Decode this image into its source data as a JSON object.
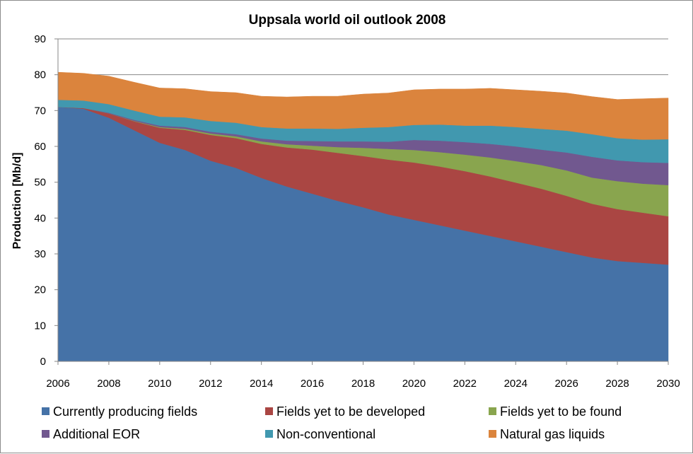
{
  "chart_data": {
    "type": "area",
    "stacked": true,
    "title": "Uppsala world oil outlook 2008",
    "xlabel": "",
    "ylabel": "Production [Mb/d]",
    "xlim": [
      2006,
      2030
    ],
    "ylim": [
      0,
      90
    ],
    "xticks": [
      2006,
      2008,
      2010,
      2012,
      2014,
      2016,
      2018,
      2020,
      2022,
      2024,
      2026,
      2028,
      2030
    ],
    "yticks": [
      0,
      10,
      20,
      30,
      40,
      50,
      60,
      70,
      80,
      90
    ],
    "grid": "horizontal",
    "legend_position": "bottom",
    "x": [
      2006,
      2007,
      2008,
      2009,
      2010,
      2011,
      2012,
      2013,
      2014,
      2015,
      2016,
      2017,
      2018,
      2019,
      2020,
      2021,
      2022,
      2023,
      2024,
      2025,
      2026,
      2027,
      2028,
      2029,
      2030
    ],
    "series": [
      {
        "name": "Currently producing fields",
        "color": "#4572a7",
        "values": [
          71.0,
          70.5,
          68.0,
          64.5,
          61.0,
          59.0,
          56.0,
          54.0,
          51.2,
          48.8,
          46.8,
          44.8,
          43.0,
          41.0,
          39.5,
          38.0,
          36.5,
          35.0,
          33.5,
          32.0,
          30.5,
          29.0,
          28.0,
          27.5,
          27.0
        ]
      },
      {
        "name": "Fields yet to be developed",
        "color": "#aa4643",
        "values": [
          0.0,
          0.2,
          1.2,
          2.5,
          4.2,
          5.6,
          7.2,
          8.3,
          9.5,
          10.9,
          12.3,
          13.4,
          14.3,
          15.3,
          16.0,
          16.4,
          16.6,
          16.6,
          16.4,
          16.2,
          15.7,
          15.0,
          14.5,
          14.0,
          13.5
        ]
      },
      {
        "name": "Fields yet to be found",
        "color": "#89a54e",
        "values": [
          0.0,
          0.0,
          0.0,
          0.1,
          0.2,
          0.3,
          0.4,
          0.5,
          0.7,
          0.9,
          1.1,
          1.6,
          2.3,
          3.0,
          3.5,
          4.0,
          4.6,
          5.3,
          6.0,
          6.6,
          7.1,
          7.3,
          7.8,
          8.1,
          8.7
        ]
      },
      {
        "name": "Additional EOR",
        "color": "#71588f",
        "values": [
          0.0,
          0.0,
          0.2,
          0.3,
          0.4,
          0.5,
          0.5,
          0.6,
          0.8,
          1.0,
          1.3,
          1.6,
          1.8,
          2.0,
          2.8,
          3.2,
          3.5,
          3.8,
          4.1,
          4.3,
          5.0,
          5.8,
          5.8,
          6.0,
          6.2
        ]
      },
      {
        "name": "Non-conventional",
        "color": "#4198af",
        "values": [
          2.0,
          2.1,
          2.4,
          2.6,
          2.5,
          2.7,
          3.0,
          3.2,
          3.2,
          3.4,
          3.5,
          3.5,
          3.8,
          4.1,
          4.2,
          4.5,
          4.6,
          5.1,
          5.4,
          5.8,
          6.1,
          6.3,
          6.2,
          6.3,
          6.6
        ]
      },
      {
        "name": "Natural gas liquids",
        "color": "#db843d",
        "values": [
          7.7,
          7.6,
          7.8,
          7.9,
          8.0,
          8.0,
          8.2,
          8.4,
          8.6,
          8.8,
          9.0,
          9.1,
          9.4,
          9.5,
          9.8,
          9.9,
          10.2,
          10.4,
          10.4,
          10.5,
          10.5,
          10.5,
          10.8,
          11.4,
          11.5
        ]
      }
    ]
  }
}
